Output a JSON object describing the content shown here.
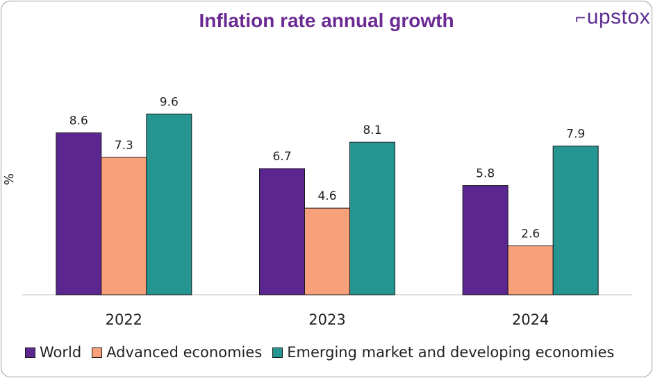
{
  "chart_data": {
    "type": "bar",
    "title": "Inflation rate annual growth",
    "xlabel": "",
    "ylabel": "%",
    "categories": [
      "2022",
      "2023",
      "2024"
    ],
    "series": [
      {
        "name": "World",
        "color": "#5b2690",
        "values": [
          8.6,
          6.7,
          5.8
        ]
      },
      {
        "name": "Advanced economies",
        "color": "#f8a07a",
        "values": [
          7.3,
          4.6,
          2.6
        ]
      },
      {
        "name": "Emerging market and developing economies",
        "color": "#259592",
        "values": [
          9.6,
          8.1,
          7.9
        ]
      }
    ],
    "ylim": [
      0,
      10
    ],
    "grid": false,
    "legend": "bottom"
  },
  "brand": {
    "logo_text": "upstox",
    "color": "#5d2d90"
  }
}
